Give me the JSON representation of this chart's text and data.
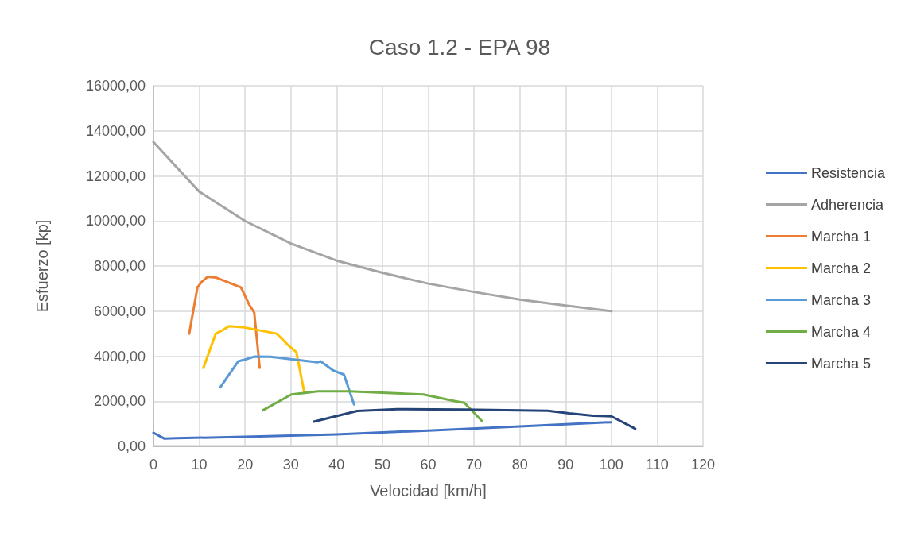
{
  "chart_data": {
    "type": "line",
    "title": "Caso 1.2 - EPA 98",
    "xlabel": "Velocidad [km/h]",
    "ylabel": "Esfuerzo [kp]",
    "xlim": [
      0,
      120
    ],
    "xticks": [
      0,
      10,
      20,
      30,
      40,
      50,
      60,
      70,
      80,
      90,
      100,
      110,
      120
    ],
    "ylim": [
      0,
      16000
    ],
    "yticks": [
      {
        "value": 0,
        "label": "0,00"
      },
      {
        "value": 2000,
        "label": "2000,00"
      },
      {
        "value": 4000,
        "label": "4000,00"
      },
      {
        "value": 6000,
        "label": "6000,00"
      },
      {
        "value": 8000,
        "label": "8000,00"
      },
      {
        "value": 10000,
        "label": "10000,00"
      },
      {
        "value": 12000,
        "label": "12000,00"
      },
      {
        "value": 14000,
        "label": "14000,00"
      },
      {
        "value": 16000,
        "label": "16000,00"
      }
    ],
    "grid": true,
    "legend": "right",
    "marker": "none",
    "line_style": "solid",
    "series": [
      {
        "name": "Resistencia",
        "color": "#4472c4",
        "x": [
          0,
          2.4,
          5,
          20,
          40,
          60,
          80,
          100
        ],
        "values": [
          600,
          340,
          360,
          420,
          530,
          700,
          880,
          1070
        ]
      },
      {
        "name": "Adherencia",
        "color": "#a5a5a5",
        "x": [
          0,
          10,
          20,
          30,
          40,
          50,
          60,
          70,
          80,
          90,
          100
        ],
        "values": [
          13500,
          11300,
          10000,
          9000,
          8240,
          7700,
          7220,
          6850,
          6510,
          6250,
          6000
        ]
      },
      {
        "name": "Marcha 1",
        "color": "#ed7d31",
        "x": [
          7.8,
          9.6,
          10.5,
          11.8,
          13.6,
          19.1,
          20.9,
          22.0,
          23.2
        ],
        "values": [
          5000,
          7050,
          7290,
          7520,
          7490,
          7050,
          6290,
          5940,
          3480
        ]
      },
      {
        "name": "Marcha 2",
        "color": "#ffc000",
        "x": [
          10.9,
          13.6,
          14.8,
          16.5,
          19.4,
          26.9,
          29.5,
          31.2,
          32.9
        ],
        "values": [
          3480,
          5000,
          5120,
          5330,
          5290,
          5000,
          4470,
          4180,
          2420
        ]
      },
      {
        "name": "Marcha 3",
        "color": "#5b9bd5",
        "x": [
          14.6,
          18.5,
          20.0,
          22.0,
          25.5,
          35.9,
          36.5,
          39.3,
          41.6,
          43.8
        ],
        "values": [
          2620,
          3770,
          3850,
          3980,
          3970,
          3730,
          3770,
          3360,
          3180,
          1860
        ]
      },
      {
        "name": "Marcha 4",
        "color": "#70ad47",
        "x": [
          23.9,
          30.1,
          32.7,
          35.9,
          42.8,
          59.0,
          65.9,
          67.9,
          71.7
        ],
        "values": [
          1600,
          2300,
          2360,
          2440,
          2440,
          2300,
          2000,
          1930,
          1130
        ]
      },
      {
        "name": "Marcha 5",
        "color": "#264478",
        "x": [
          35.0,
          44.5,
          53.2,
          67.6,
          86.1,
          90.8,
          96.0,
          100,
          105.2
        ],
        "values": [
          1090,
          1570,
          1650,
          1630,
          1580,
          1460,
          1360,
          1330,
          780
        ]
      }
    ]
  }
}
